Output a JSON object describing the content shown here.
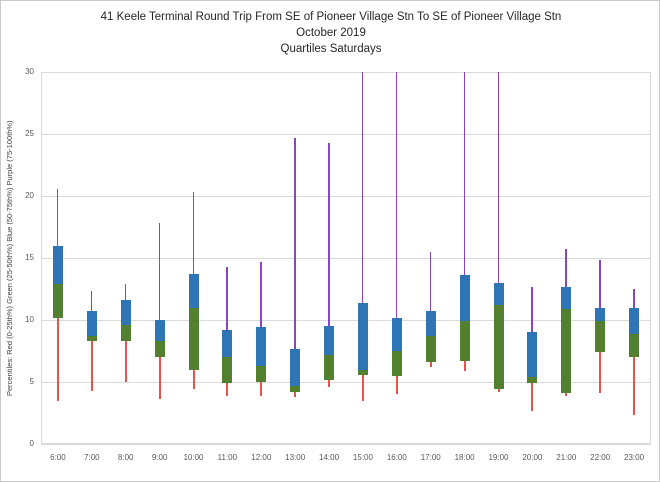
{
  "title": {
    "line1": "41 Keele Terminal Round Trip From SE of Pioneer Village Stn To SE of Pioneer Village Stn",
    "line2": "October 2019",
    "line3": "Quartiles Saturdays"
  },
  "chart_data": {
    "type": "boxplot",
    "title": "41 Keele Terminal Round Trip From SE of Pioneer Village Stn To SE of Pioneer Village Stn",
    "subtitle": "October 2019",
    "subtitle2": "Quartiles Saturdays",
    "ylabel": "Percentiles:  Red (0-25th%)  Green (25-50th%)  Blue (50-75th%)  Purple (75-100th%)",
    "xlabel": "",
    "ylim": [
      0,
      30
    ],
    "yticks": [
      0,
      5,
      10,
      15,
      20,
      25,
      30
    ],
    "grid": true,
    "legend_position": "none",
    "categories": [
      "6:00",
      "7:00",
      "8:00",
      "9:00",
      "10:00",
      "11:00",
      "12:00",
      "13:00",
      "14:00",
      "15:00",
      "16:00",
      "17:00",
      "18:00",
      "19:00",
      "20:00",
      "21:00",
      "22:00",
      "23:00"
    ],
    "series_meaning": {
      "red": "0-25th percentile whisker",
      "green": "25-50th percentile box",
      "blue": "50-75th percentile box",
      "purple": "75-100th percentile whisker"
    },
    "colors": {
      "red": "#E8524D",
      "green": "#53802E",
      "blue": "#2E75B6",
      "purple": "#8A46C2",
      "grid": "#D9D9D9",
      "axis_text": "#595959",
      "title_text": "#262626"
    },
    "points": [
      {
        "hour": "6:00",
        "min": 3.5,
        "q25": 10.2,
        "q50": 12.9,
        "q75": 16.0,
        "max": 20.6
      },
      {
        "hour": "7:00",
        "min": 4.3,
        "q25": 8.3,
        "q50": 8.7,
        "q75": 10.7,
        "max": 12.3
      },
      {
        "hour": "8:00",
        "min": 5.0,
        "q25": 8.3,
        "q50": 9.6,
        "q75": 11.6,
        "max": 12.9
      },
      {
        "hour": "9:00",
        "min": 3.6,
        "q25": 7.0,
        "q50": 8.3,
        "q75": 10.0,
        "max": 17.8
      },
      {
        "hour": "10:00",
        "min": 4.4,
        "q25": 6.0,
        "q50": 11.0,
        "q75": 13.7,
        "max": 20.3
      },
      {
        "hour": "11:00",
        "min": 3.9,
        "q25": 4.9,
        "q50": 7.0,
        "q75": 9.2,
        "max": 14.3
      },
      {
        "hour": "12:00",
        "min": 3.9,
        "q25": 5.0,
        "q50": 6.3,
        "q75": 9.4,
        "max": 14.7
      },
      {
        "hour": "13:00",
        "min": 3.8,
        "q25": 4.2,
        "q50": 4.7,
        "q75": 7.7,
        "max": 24.7
      },
      {
        "hour": "14:00",
        "min": 4.6,
        "q25": 5.2,
        "q50": 7.2,
        "q75": 9.5,
        "max": 24.3
      },
      {
        "hour": "15:00",
        "min": 3.5,
        "q25": 5.6,
        "q50": 6.0,
        "q75": 11.4,
        "max": 30
      },
      {
        "hour": "16:00",
        "min": 4.0,
        "q25": 5.5,
        "q50": 7.5,
        "q75": 10.2,
        "max": 30
      },
      {
        "hour": "17:00",
        "min": 6.2,
        "q25": 6.6,
        "q50": 8.7,
        "q75": 10.7,
        "max": 15.5
      },
      {
        "hour": "18:00",
        "min": 5.9,
        "q25": 6.7,
        "q50": 9.9,
        "q75": 13.6,
        "max": 30
      },
      {
        "hour": "19:00",
        "min": 4.2,
        "q25": 4.4,
        "q50": 11.2,
        "q75": 13.0,
        "max": 30
      },
      {
        "hour": "20:00",
        "min": 2.7,
        "q25": 4.9,
        "q50": 5.4,
        "q75": 9.0,
        "max": 12.7
      },
      {
        "hour": "21:00",
        "min": 3.9,
        "q25": 4.1,
        "q50": 10.9,
        "q75": 12.7,
        "max": 15.7
      },
      {
        "hour": "22:00",
        "min": 4.1,
        "q25": 7.4,
        "q50": 9.9,
        "q75": 11.0,
        "max": 14.8
      },
      {
        "hour": "23:00",
        "min": 2.3,
        "q25": 7.0,
        "q50": 8.9,
        "q75": 11.0,
        "max": 12.5
      }
    ]
  }
}
